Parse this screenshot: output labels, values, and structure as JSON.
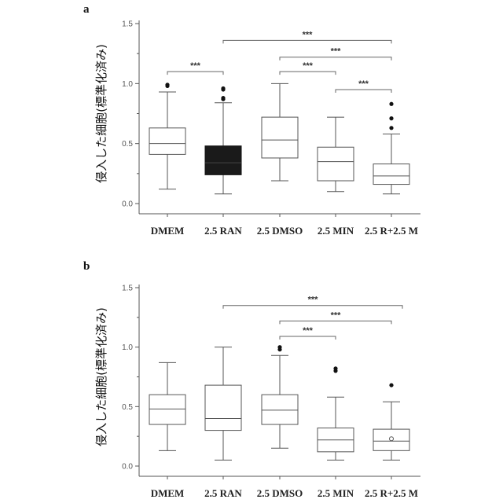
{
  "chart_data": [
    {
      "type": "box",
      "panel_label": "a",
      "ylabel": "侵入した細胞(標準化済み)",
      "ylim": [
        0,
        1.5
      ],
      "yticks": [
        "0.0",
        "0.5",
        "1.0",
        "1.5"
      ],
      "categories": [
        "DMEM",
        "2.5 RAN",
        "2.5 DMSO",
        "2.5 MIN",
        "2.5 R+2.5 M"
      ],
      "boxes": [
        {
          "min": 0.12,
          "q1": 0.41,
          "median": 0.5,
          "q3": 0.63,
          "max": 0.93,
          "outliers": [
            0.98,
            0.99
          ],
          "filled": false
        },
        {
          "min": 0.08,
          "q1": 0.24,
          "median": 0.34,
          "q3": 0.48,
          "max": 0.84,
          "outliers": [
            0.87,
            0.88,
            0.95,
            0.96
          ],
          "filled": true
        },
        {
          "min": 0.19,
          "q1": 0.38,
          "median": 0.53,
          "q3": 0.72,
          "max": 1.0,
          "outliers": [],
          "filled": false
        },
        {
          "min": 0.1,
          "q1": 0.19,
          "median": 0.35,
          "q3": 0.47,
          "max": 0.72,
          "outliers": [],
          "filled": false
        },
        {
          "min": 0.08,
          "q1": 0.16,
          "median": 0.23,
          "q3": 0.33,
          "max": 0.58,
          "outliers": [
            0.63,
            0.71,
            0.83
          ],
          "filled": false
        }
      ],
      "significance": [
        {
          "from": 0,
          "to": 1,
          "y": 1.1,
          "label": "***"
        },
        {
          "from": 1,
          "to": 4,
          "y": 1.36,
          "label": "***"
        },
        {
          "from": 2,
          "to": 4,
          "y": 1.22,
          "label": "***"
        },
        {
          "from": 2,
          "to": 3,
          "y": 1.1,
          "label": "***"
        },
        {
          "from": 3,
          "to": 4,
          "y": 0.95,
          "label": "***"
        }
      ],
      "fill_color": "#1a1a1a"
    },
    {
      "type": "box",
      "panel_label": "b",
      "ylabel": "侵入した細胞(標準化済み)",
      "ylim": [
        0,
        1.5
      ],
      "yticks": [
        "0.0",
        "0.5",
        "1.0",
        "1.5"
      ],
      "categories": [
        "DMEM",
        "2.5 RAN",
        "2.5 DMSO",
        "2.5 MIN",
        "2.5 R+2.5 M"
      ],
      "boxes": [
        {
          "min": 0.13,
          "q1": 0.35,
          "median": 0.48,
          "q3": 0.6,
          "max": 0.87,
          "outliers": [],
          "filled": false
        },
        {
          "min": 0.05,
          "q1": 0.3,
          "median": 0.4,
          "q3": 0.68,
          "max": 1.0,
          "outliers": [],
          "filled": false
        },
        {
          "min": 0.15,
          "q1": 0.35,
          "median": 0.47,
          "q3": 0.6,
          "max": 0.93,
          "outliers": [
            0.98,
            1.0
          ],
          "filled": false
        },
        {
          "min": 0.05,
          "q1": 0.12,
          "median": 0.22,
          "q3": 0.32,
          "max": 0.58,
          "outliers": [
            0.8,
            0.82
          ],
          "filled": false
        },
        {
          "min": 0.05,
          "q1": 0.13,
          "median": 0.21,
          "q3": 0.31,
          "max": 0.54,
          "outliers": [
            0.68
          ],
          "filled": false,
          "mean": 0.23
        }
      ],
      "significance": [
        {
          "from": 1,
          "to": 4,
          "y": 1.35,
          "label": "***"
        },
        {
          "from": 2,
          "to": 4,
          "y": 1.22,
          "label": "***"
        },
        {
          "from": 2,
          "to": 3,
          "y": 1.09,
          "label": "***"
        }
      ],
      "fill_color": "#1a1a1a"
    }
  ]
}
